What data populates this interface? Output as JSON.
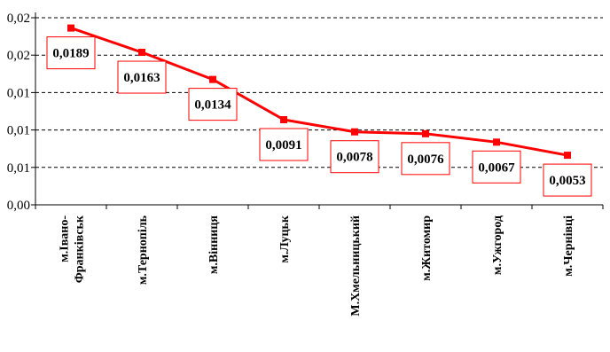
{
  "chart_data": {
    "type": "line",
    "title": "",
    "xlabel": "",
    "ylabel": "",
    "categories": [
      [
        "м.Івано-",
        "Франківськ"
      ],
      [
        "м.Тернопіль"
      ],
      [
        "м.Вінниця"
      ],
      [
        "м.Луцьк"
      ],
      [
        "М.Хмельницький"
      ],
      [
        "м.Житомир"
      ],
      [
        "м.Ужгород"
      ],
      [
        "м.Чернівці"
      ]
    ],
    "y_tick_labels": [
      "0,00",
      "0,01",
      "0,01",
      "0,01",
      "0,02",
      "0,02"
    ],
    "ylim": [
      0,
      0.02
    ],
    "grid": true,
    "series": [
      {
        "values": [
          0.0189,
          0.0163,
          0.0134,
          0.0091,
          0.0078,
          0.0076,
          0.0067,
          0.0053
        ],
        "labels": [
          "0,0189",
          "0,0163",
          "0,0134",
          "0,0091",
          "0,0078",
          "0,0076",
          "0,0067",
          "0,0053"
        ],
        "color": "#ff0000"
      }
    ]
  }
}
